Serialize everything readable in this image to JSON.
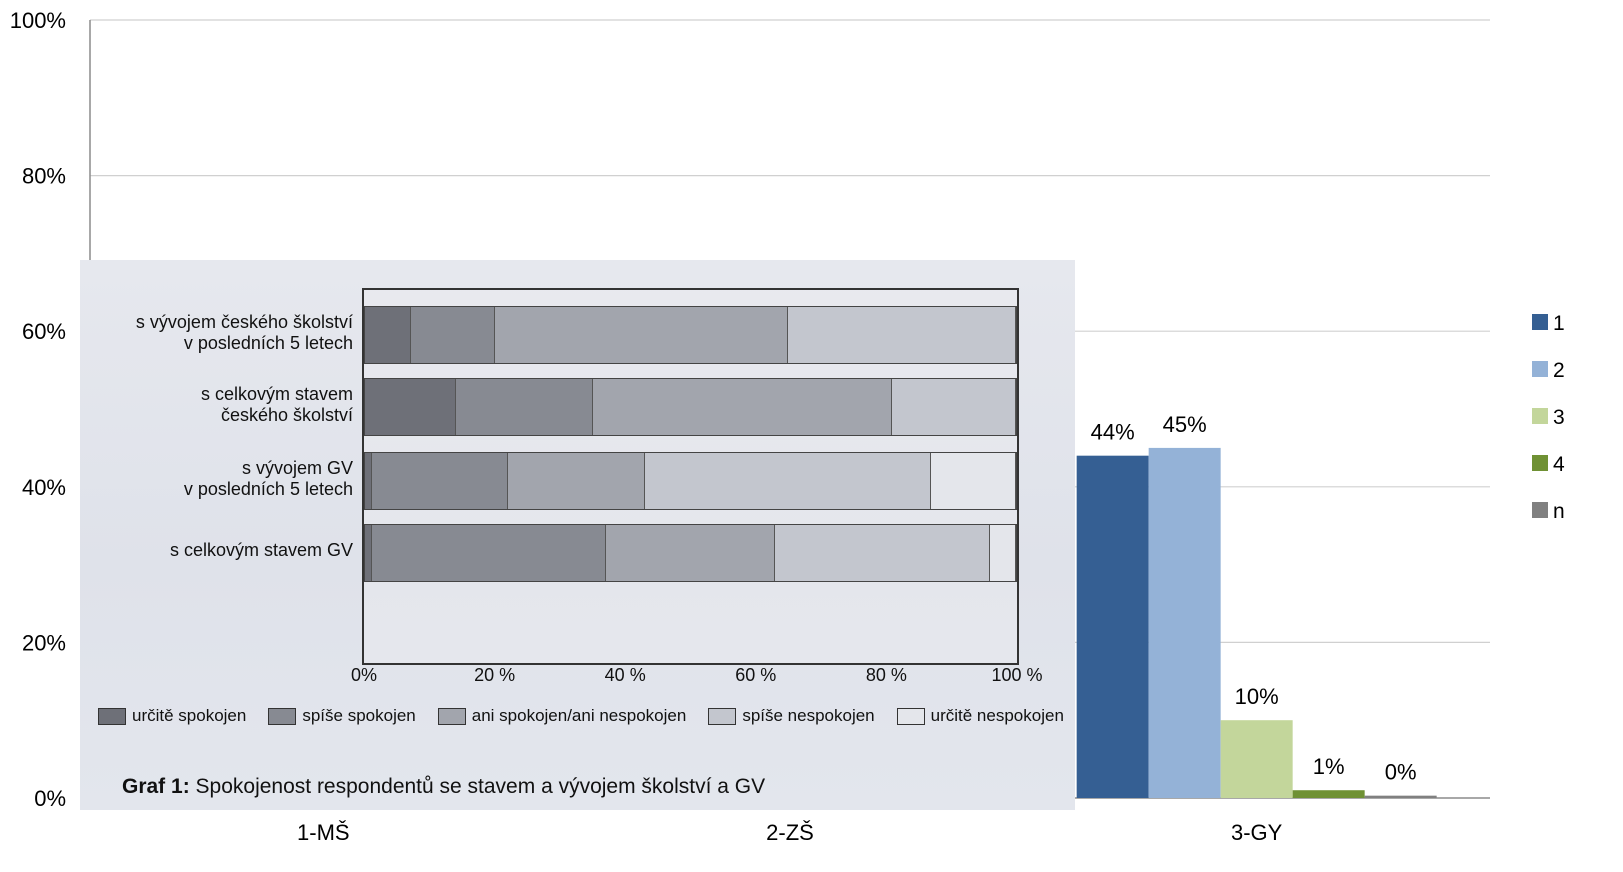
{
  "chart_data": {
    "type": "bar",
    "categories": [
      "1-MŠ",
      "2-ZŠ",
      "3-GY"
    ],
    "ylim": [
      0,
      100
    ],
    "yticks": [
      "0%",
      "20%",
      "40%",
      "60%",
      "80%",
      "100%"
    ],
    "grid": true,
    "legend_position": "right",
    "series": [
      {
        "name": "1",
        "color": "#355f93",
        "values": [
          null,
          null,
          44
        ],
        "labels": [
          "",
          "",
          "44%"
        ]
      },
      {
        "name": "2",
        "color": "#94b2d7",
        "values": [
          null,
          null,
          45
        ],
        "labels": [
          "",
          "",
          "45%"
        ]
      },
      {
        "name": "3",
        "color": "#c3d69b",
        "values": [
          null,
          null,
          10
        ],
        "labels": [
          "",
          "",
          "10%"
        ]
      },
      {
        "name": "4",
        "color": "#6f9134",
        "values": [
          null,
          null,
          1
        ],
        "labels": [
          "",
          "",
          "1%"
        ]
      },
      {
        "name": "n",
        "color": "#808080",
        "values": [
          null,
          null,
          0.3
        ],
        "labels": [
          "",
          "",
          "0%"
        ]
      }
    ]
  },
  "embedded_figure": {
    "type": "bar",
    "orientation": "horizontal",
    "stacked": true,
    "caption_bold": "Graf 1:",
    "caption_rest": " Spokojenost respondentů se stavem a vývojem školství a GV",
    "rows": [
      {
        "label_lines": [
          "s vývojem českého školství",
          "v posledních 5 letech"
        ],
        "values": [
          7,
          13,
          45,
          35,
          0
        ]
      },
      {
        "label_lines": [
          "s celkovým stavem",
          "českého školství"
        ],
        "values": [
          14,
          21,
          46,
          19,
          0
        ]
      },
      {
        "label_lines": [
          "s vývojem GV",
          "v posledních 5 letech"
        ],
        "values": [
          1,
          21,
          21,
          44,
          13
        ]
      },
      {
        "label_lines": [
          "s celkovým stavem GV"
        ],
        "values": [
          1,
          36,
          26,
          33,
          4
        ]
      }
    ],
    "xticks": [
      "0%",
      "20 %",
      "40 %",
      "60 %",
      "80 %",
      "100 %"
    ],
    "legend": [
      {
        "label": "určitě spokojen",
        "color": "#6e7078"
      },
      {
        "label": "spíše spokojen",
        "color": "#878a92"
      },
      {
        "label": "ani spokojen/ani nespokojen",
        "color": "#a2a5ad"
      },
      {
        "label": "spíše nespokojen",
        "color": "#c3c6ce"
      },
      {
        "label": "určitě nespokojen",
        "color": "#e4e6eb"
      }
    ]
  }
}
